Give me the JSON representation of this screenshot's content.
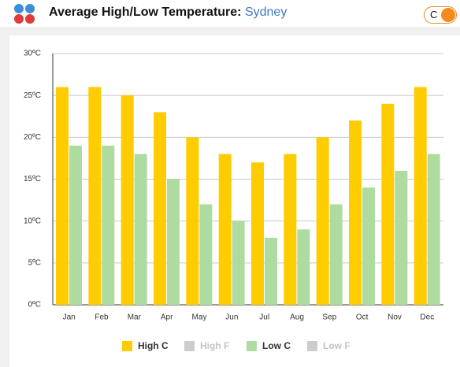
{
  "header": {
    "title": "Average High/Low Temperature:",
    "location": "Sydney",
    "unit_toggle": "C"
  },
  "chart_data": {
    "type": "bar",
    "categories": [
      "Jan",
      "Feb",
      "Mar",
      "Apr",
      "May",
      "Jun",
      "Jul",
      "Aug",
      "Sep",
      "Oct",
      "Nov",
      "Dec"
    ],
    "series": [
      {
        "name": "High C",
        "color": "#ffcc00",
        "values": [
          26,
          26,
          25,
          23,
          20,
          18,
          17,
          18,
          20,
          22,
          24,
          26
        ]
      },
      {
        "name": "High F",
        "color": "#cccccc",
        "visible": false
      },
      {
        "name": "Low C",
        "color": "#addba0",
        "values": [
          19,
          19,
          18,
          15,
          12,
          10,
          8,
          9,
          12,
          14,
          16,
          18
        ]
      },
      {
        "name": "Low F",
        "color": "#cccccc",
        "visible": false
      }
    ],
    "ylim": [
      0,
      30
    ],
    "yticks": [
      {
        "value": 0,
        "label": "0ºC"
      },
      {
        "value": 5,
        "label": "5ºC"
      },
      {
        "value": 10,
        "label": "10ºC"
      },
      {
        "value": 15,
        "label": "15ºC"
      },
      {
        "value": 20,
        "label": "20ºC"
      },
      {
        "value": 25,
        "label": "25ºC"
      },
      {
        "value": 30,
        "label": "30ºC"
      }
    ],
    "grid": true
  }
}
